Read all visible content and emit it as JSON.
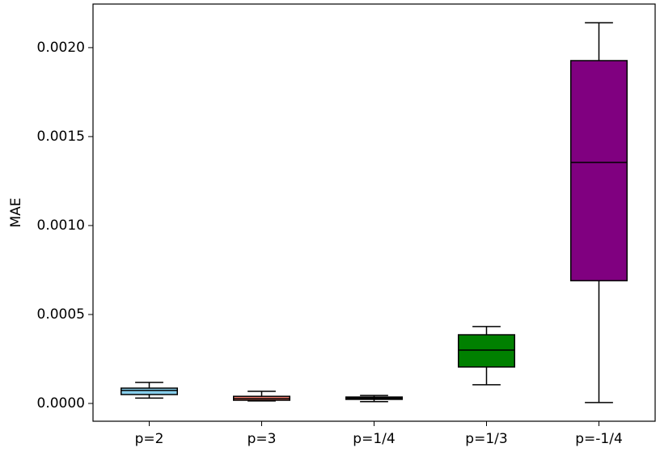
{
  "chart_data": {
    "type": "box",
    "y_label": "MAE",
    "categories": [
      "p=2",
      "p=3",
      "p=1/4",
      "p=1/3",
      "p=-1/4"
    ],
    "colors": [
      "#87ceeb",
      "#fa8072",
      "#000000",
      "#008000",
      "#800080"
    ],
    "boxes": [
      {
        "whislo": 3e-05,
        "q1": 5e-05,
        "med": 7.3e-05,
        "q3": 8.6e-05,
        "whishi": 0.000118
      },
      {
        "whislo": 1.4e-05,
        "q1": 1.8e-05,
        "med": 2.7e-05,
        "q3": 4e-05,
        "whishi": 6.8e-05
      },
      {
        "whislo": 1e-05,
        "q1": 2.3e-05,
        "med": 2.7e-05,
        "q3": 3.6e-05,
        "whishi": 4.5e-05
      },
      {
        "whislo": 0.000105,
        "q1": 0.000205,
        "med": 0.0003,
        "q3": 0.000386,
        "whishi": 0.000432
      },
      {
        "whislo": 5e-06,
        "q1": 0.00069,
        "med": 0.001355,
        "q3": 0.001927,
        "whishi": 0.00214
      }
    ],
    "ylim": [
      -0.0001,
      0.002245
    ],
    "yticks": [
      {
        "value": 0,
        "label": "0.0000"
      },
      {
        "value": 0.0005,
        "label": "0.0005"
      },
      {
        "value": 0.001,
        "label": "0.0010"
      },
      {
        "value": 0.0015,
        "label": "0.0015"
      },
      {
        "value": 0.002,
        "label": "0.0020"
      }
    ]
  }
}
